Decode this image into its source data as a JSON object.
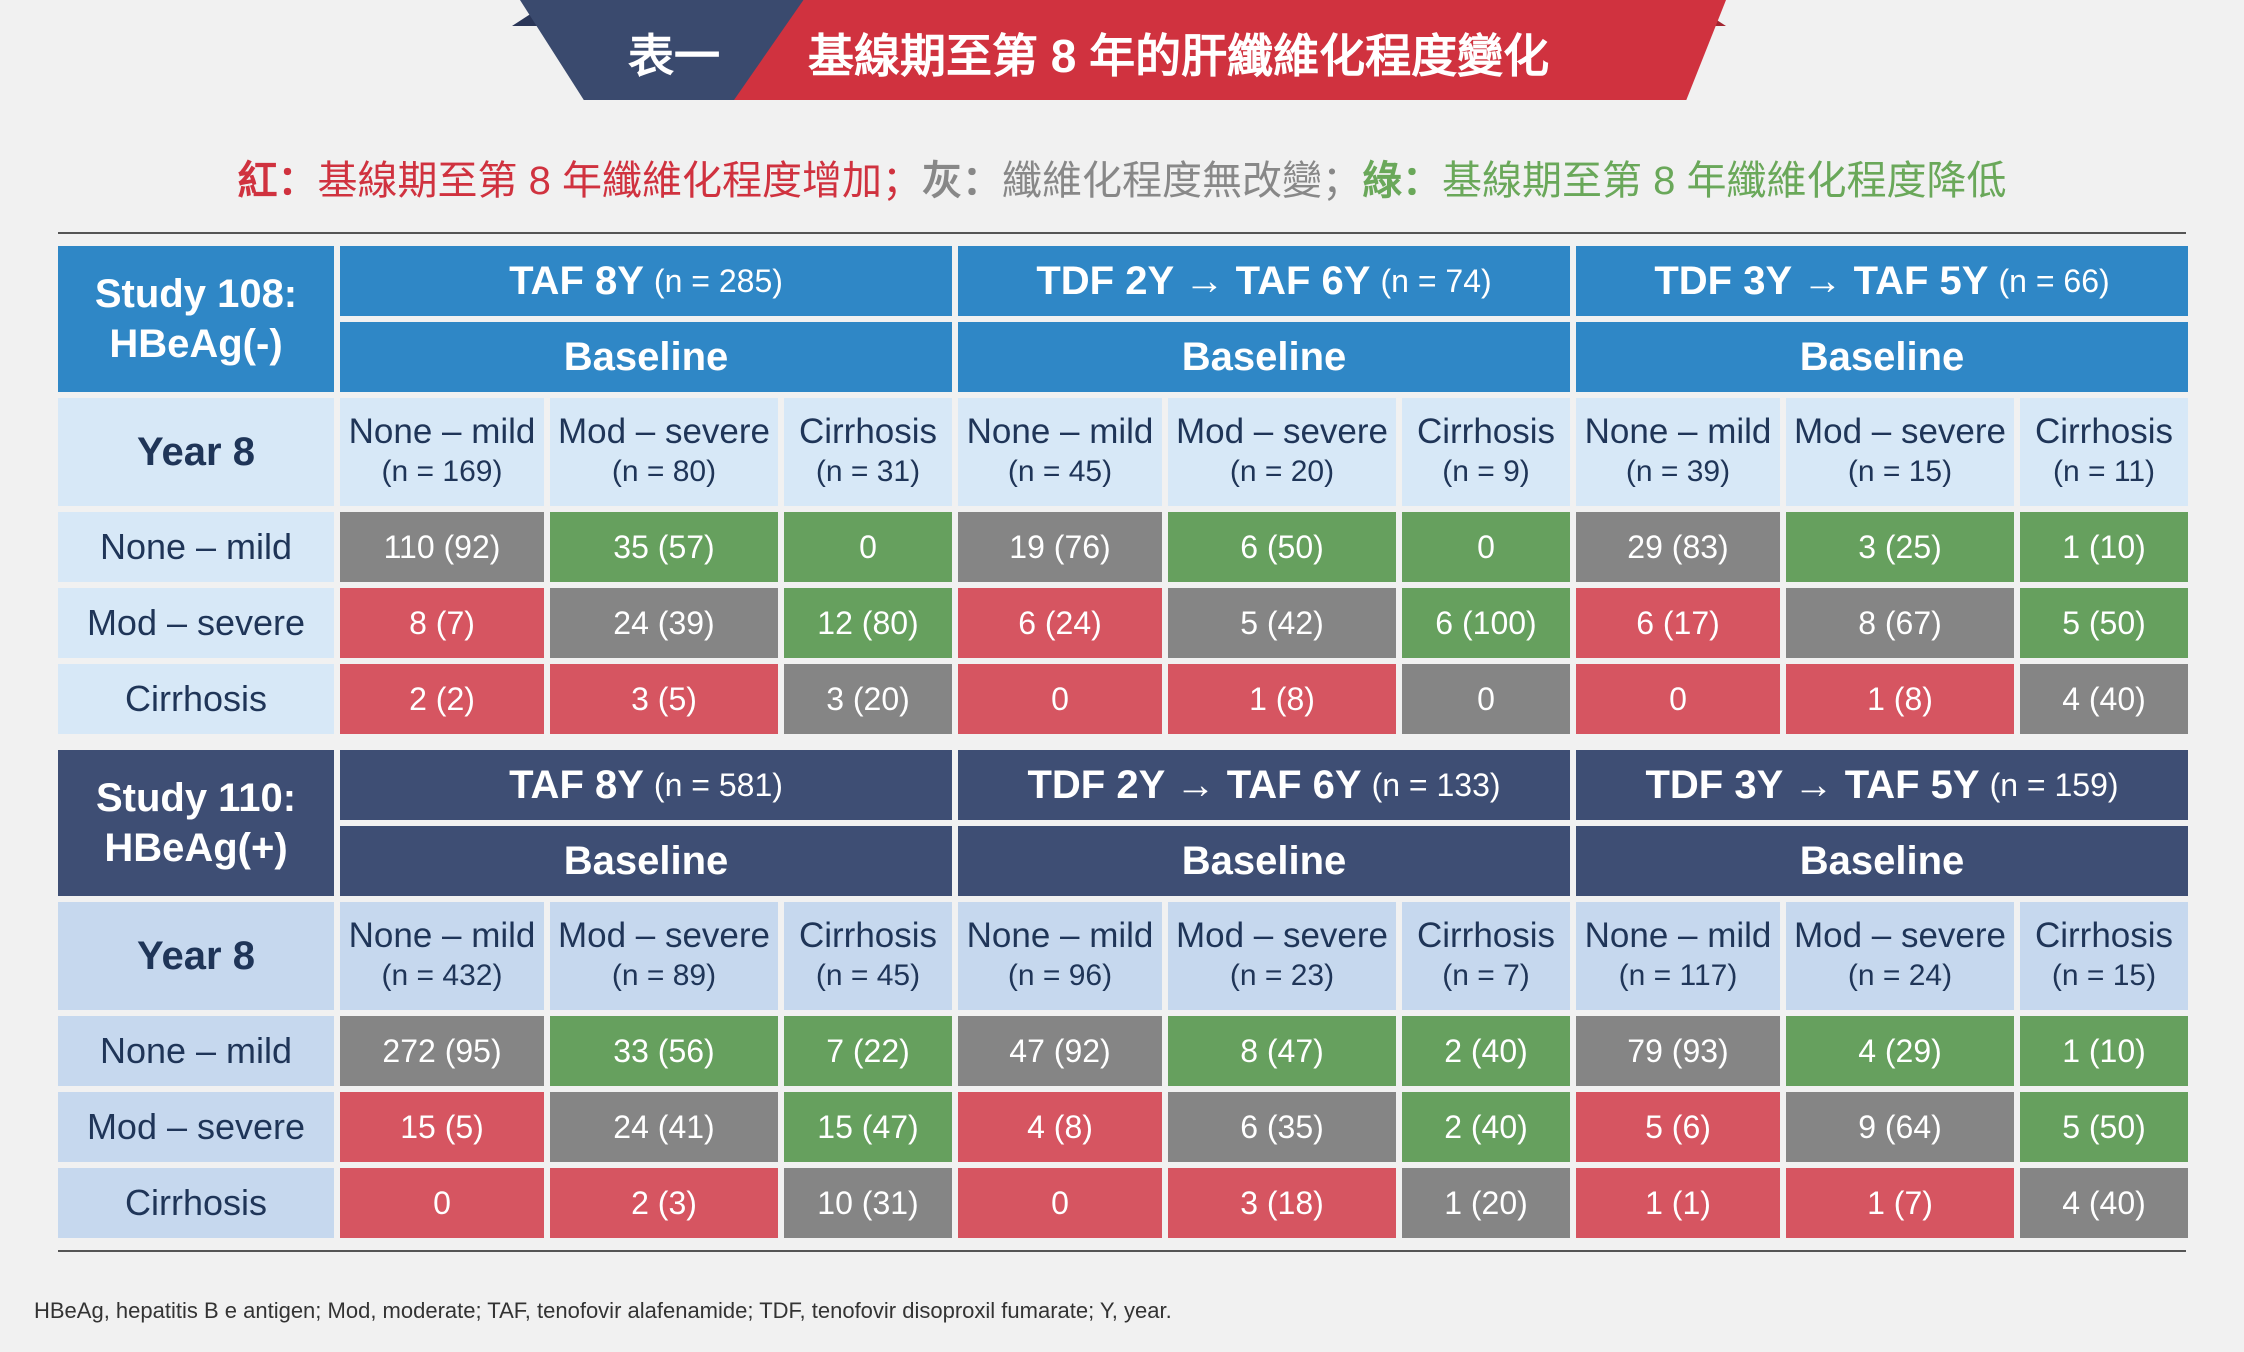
{
  "title": {
    "label_left": "表一",
    "label_right": "基線期至第 8 年的肝纖維化程度變化"
  },
  "legend": {
    "red_key": "紅：",
    "red_text": "基線期至第 8 年纖維化程度增加；",
    "gray_key": "灰：",
    "gray_text": "纖維化程度無改變；",
    "green_key": "綠：",
    "green_text": "基線期至第 8 年纖維化程度降低"
  },
  "colors": {
    "increase": "#d65561",
    "unchanged": "#858585",
    "decrease": "#66a05e",
    "title_red": "#d0323f",
    "title_navy": "#3a4a6e",
    "study108": "#2f87c6",
    "study110": "#3e4e74"
  },
  "tables": [
    {
      "study": [
        "Study 108:",
        "HBeAg(-)"
      ],
      "arms": [
        {
          "name": "TAF 8Y",
          "n": "(n = 285)"
        },
        {
          "name": "TDF 2Y → TAF 6Y",
          "n": "(n = 74)"
        },
        {
          "name": "TDF 3Y → TAF 5Y",
          "n": "(n = 66)"
        }
      ],
      "baseline_label": "Baseline",
      "year_label": "Year 8",
      "col_headers": [
        {
          "label": "None – mild",
          "n": "(n = 169)"
        },
        {
          "label": "Mod – severe",
          "n": "(n = 80)"
        },
        {
          "label": "Cirrhosis",
          "n": "(n = 31)"
        },
        {
          "label": "None – mild",
          "n": "(n = 45)"
        },
        {
          "label": "Mod – severe",
          "n": "(n = 20)"
        },
        {
          "label": "Cirrhosis",
          "n": "(n = 9)"
        },
        {
          "label": "None – mild",
          "n": "(n = 39)"
        },
        {
          "label": "Mod – severe",
          "n": "(n = 15)"
        },
        {
          "label": "Cirrhosis",
          "n": "(n = 11)"
        }
      ],
      "rows": [
        {
          "label": "None – mild",
          "cells": [
            {
              "v": "110 (92)",
              "c": "unchanged"
            },
            {
              "v": "35 (57)",
              "c": "decrease"
            },
            {
              "v": "0",
              "c": "decrease"
            },
            {
              "v": "19 (76)",
              "c": "unchanged"
            },
            {
              "v": "6 (50)",
              "c": "decrease"
            },
            {
              "v": "0",
              "c": "decrease"
            },
            {
              "v": "29 (83)",
              "c": "unchanged"
            },
            {
              "v": "3 (25)",
              "c": "decrease"
            },
            {
              "v": "1 (10)",
              "c": "decrease"
            }
          ]
        },
        {
          "label": "Mod – severe",
          "cells": [
            {
              "v": "8 (7)",
              "c": "increase"
            },
            {
              "v": "24 (39)",
              "c": "unchanged"
            },
            {
              "v": "12 (80)",
              "c": "decrease"
            },
            {
              "v": "6 (24)",
              "c": "increase"
            },
            {
              "v": "5 (42)",
              "c": "unchanged"
            },
            {
              "v": "6 (100)",
              "c": "decrease"
            },
            {
              "v": "6 (17)",
              "c": "increase"
            },
            {
              "v": "8 (67)",
              "c": "unchanged"
            },
            {
              "v": "5 (50)",
              "c": "decrease"
            }
          ]
        },
        {
          "label": "Cirrhosis",
          "cells": [
            {
              "v": "2 (2)",
              "c": "increase"
            },
            {
              "v": "3 (5)",
              "c": "increase"
            },
            {
              "v": "3 (20)",
              "c": "unchanged"
            },
            {
              "v": "0",
              "c": "increase"
            },
            {
              "v": "1 (8)",
              "c": "increase"
            },
            {
              "v": "0",
              "c": "unchanged"
            },
            {
              "v": "0",
              "c": "increase"
            },
            {
              "v": "1 (8)",
              "c": "increase"
            },
            {
              "v": "4 (40)",
              "c": "unchanged"
            }
          ]
        }
      ]
    },
    {
      "study": [
        "Study 110:",
        "HBeAg(+)"
      ],
      "arms": [
        {
          "name": "TAF 8Y",
          "n": "(n = 581)"
        },
        {
          "name": "TDF 2Y → TAF 6Y",
          "n": "(n = 133)"
        },
        {
          "name": "TDF 3Y → TAF 5Y",
          "n": "(n = 159)"
        }
      ],
      "baseline_label": "Baseline",
      "year_label": "Year 8",
      "col_headers": [
        {
          "label": "None – mild",
          "n": "(n = 432)"
        },
        {
          "label": "Mod – severe",
          "n": "(n = 89)"
        },
        {
          "label": "Cirrhosis",
          "n": "(n = 45)"
        },
        {
          "label": "None – mild",
          "n": "(n = 96)"
        },
        {
          "label": "Mod – severe",
          "n": "(n = 23)"
        },
        {
          "label": "Cirrhosis",
          "n": "(n = 7)"
        },
        {
          "label": "None – mild",
          "n": "(n = 117)"
        },
        {
          "label": "Mod – severe",
          "n": "(n = 24)"
        },
        {
          "label": "Cirrhosis",
          "n": "(n = 15)"
        }
      ],
      "rows": [
        {
          "label": "None – mild",
          "cells": [
            {
              "v": "272 (95)",
              "c": "unchanged"
            },
            {
              "v": "33 (56)",
              "c": "decrease"
            },
            {
              "v": "7 (22)",
              "c": "decrease"
            },
            {
              "v": "47 (92)",
              "c": "unchanged"
            },
            {
              "v": "8 (47)",
              "c": "decrease"
            },
            {
              "v": "2 (40)",
              "c": "decrease"
            },
            {
              "v": "79 (93)",
              "c": "unchanged"
            },
            {
              "v": "4 (29)",
              "c": "decrease"
            },
            {
              "v": "1 (10)",
              "c": "decrease"
            }
          ]
        },
        {
          "label": "Mod – severe",
          "cells": [
            {
              "v": "15 (5)",
              "c": "increase"
            },
            {
              "v": "24 (41)",
              "c": "unchanged"
            },
            {
              "v": "15 (47)",
              "c": "decrease"
            },
            {
              "v": "4 (8)",
              "c": "increase"
            },
            {
              "v": "6 (35)",
              "c": "unchanged"
            },
            {
              "v": "2 (40)",
              "c": "decrease"
            },
            {
              "v": "5 (6)",
              "c": "increase"
            },
            {
              "v": "9 (64)",
              "c": "unchanged"
            },
            {
              "v": "5 (50)",
              "c": "decrease"
            }
          ]
        },
        {
          "label": "Cirrhosis",
          "cells": [
            {
              "v": "0",
              "c": "increase"
            },
            {
              "v": "2 (3)",
              "c": "increase"
            },
            {
              "v": "10 (31)",
              "c": "unchanged"
            },
            {
              "v": "0",
              "c": "increase"
            },
            {
              "v": "3 (18)",
              "c": "increase"
            },
            {
              "v": "1 (20)",
              "c": "unchanged"
            },
            {
              "v": "1 (1)",
              "c": "increase"
            },
            {
              "v": "1 (7)",
              "c": "increase"
            },
            {
              "v": "4 (40)",
              "c": "unchanged"
            }
          ]
        }
      ]
    }
  ],
  "footnote": "HBeAg, hepatitis B e antigen; Mod, moderate; TAF, tenofovir alafenamide; TDF, tenofovir disoproxil fumarate; Y, year."
}
